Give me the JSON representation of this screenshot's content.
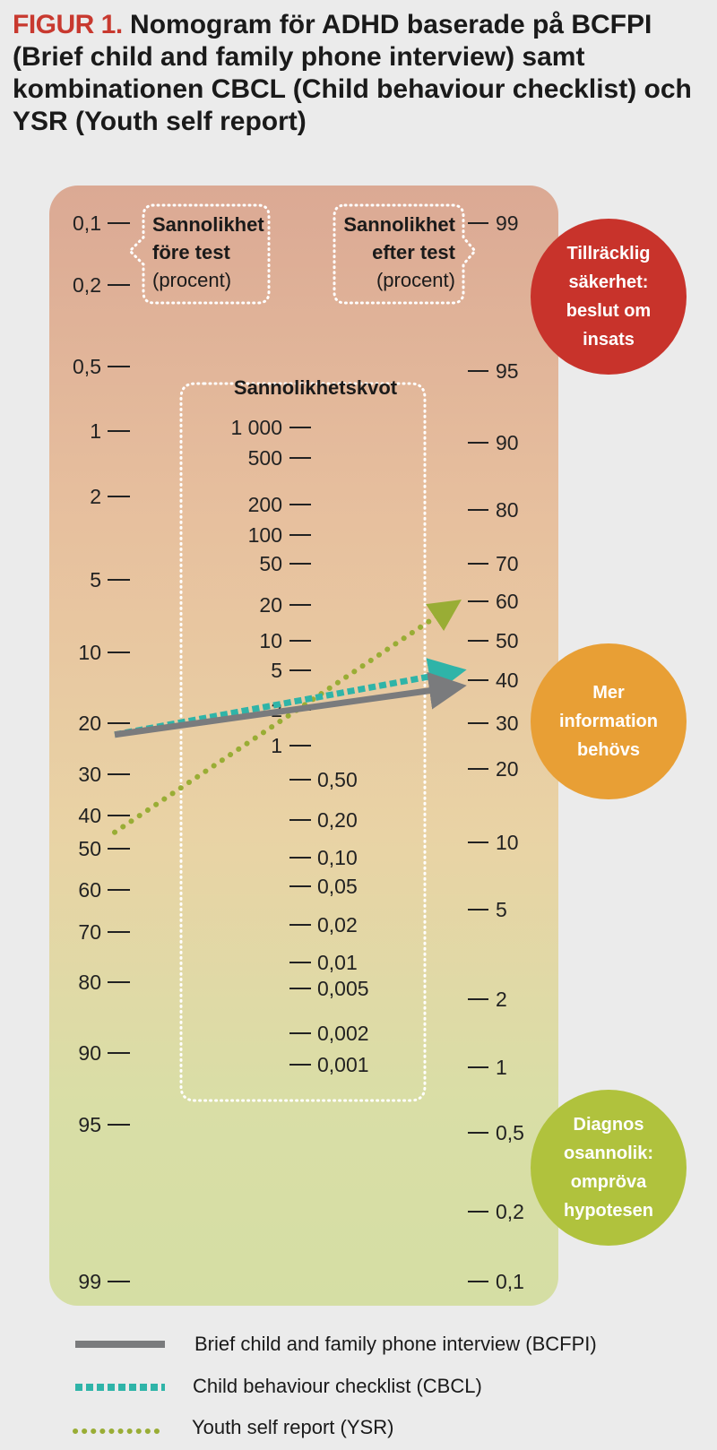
{
  "figure": {
    "label": "FIGUR 1.",
    "title": "Nomogram för ADHD baserade på BCFPI (Brief child and family phone interview) samt kombinationen CBCL (Child behaviour checklist) och YSR (Youth self report)"
  },
  "chart_data": {
    "type": "nomogram",
    "axes": {
      "pre_test": {
        "label_lines": [
          "Sannolikhet",
          "före test",
          "(procent)"
        ],
        "ticks": [
          "0,1",
          "0,2",
          "0,5",
          "1",
          "2",
          "5",
          "10",
          "20",
          "30",
          "40",
          "50",
          "60",
          "70",
          "80",
          "90",
          "95",
          "99"
        ]
      },
      "likelihood_ratio": {
        "label": "Sannolikhetskvot",
        "ticks": [
          "1 000",
          "500",
          "200",
          "100",
          "50",
          "20",
          "10",
          "5",
          "2",
          "1",
          "0,50",
          "0,20",
          "0,10",
          "0,05",
          "0,02",
          "0,01",
          "0,005",
          "0,002",
          "0,001"
        ]
      },
      "post_test": {
        "label_lines": [
          "Sannolikhet",
          "efter test",
          "(procent)"
        ],
        "ticks": [
          "99",
          "95",
          "90",
          "80",
          "70",
          "60",
          "50",
          "40",
          "30",
          "20",
          "10",
          "5",
          "2",
          "1",
          "0,5",
          "0,2",
          "0,1"
        ]
      }
    },
    "series": [
      {
        "name": "Brief child and family phone interview (BCFPI)",
        "pre_test_percent": 22,
        "likelihood_ratio": 2.2,
        "post_test_percent": 39,
        "color": "#7a7b7d",
        "style": "solid"
      },
      {
        "name": "Child behaviour checklist (CBCL)",
        "pre_test_percent": 22,
        "likelihood_ratio": 2.6,
        "post_test_percent": 43,
        "color": "#2fb4a8",
        "style": "dashed"
      },
      {
        "name": "Youth self report (YSR)",
        "pre_test_percent": 45,
        "likelihood_ratio": 2.1,
        "post_test_percent": 63,
        "color": "#99ad35",
        "style": "dotted"
      }
    ]
  },
  "zones": [
    {
      "text": "Tillräcklig säkerhet: beslut om insats",
      "lines": [
        "Tillräcklig",
        "säkerhet:",
        "beslut om",
        "insats"
      ],
      "color": "#c8332b"
    },
    {
      "text": "Mer information behövs",
      "lines": [
        "Mer",
        "information",
        "behövs"
      ],
      "color": "#e89f35"
    },
    {
      "text": "Diagnos osannolik: ompröva hypotesen",
      "lines": [
        "Diagnos",
        "osannolik:",
        "ompröva",
        "hypotesen"
      ],
      "color": "#b0c23d"
    }
  ],
  "legend": [
    {
      "label": "Brief child and family phone interview (BCFPI)",
      "color": "#7a7b7d",
      "style": "solid"
    },
    {
      "label": "Child behaviour checklist (CBCL)",
      "color": "#2fb4a8",
      "style": "dashed"
    },
    {
      "label": "Youth self report (YSR)",
      "color": "#99ad35",
      "style": "dotted"
    }
  ]
}
